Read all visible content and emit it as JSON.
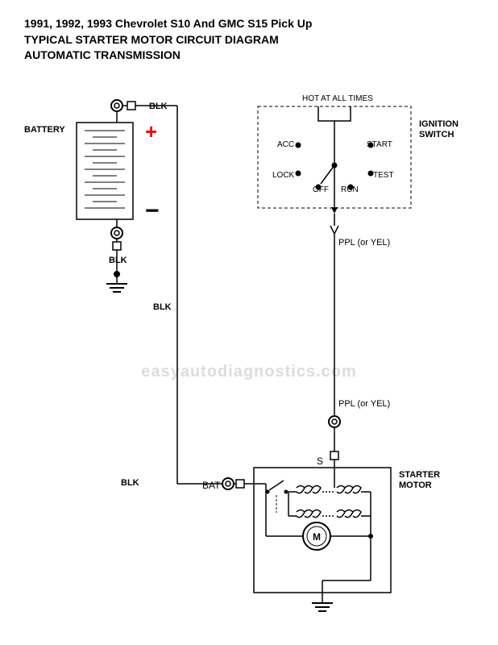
{
  "title": {
    "line1": "1991, 1992, 1993 Chevrolet S10 And GMC S15 Pick Up",
    "line2": "TYPICAL STARTER MOTOR CIRCUIT DIAGRAM",
    "line3": "AUTOMATIC TRANSMISSION"
  },
  "labels": {
    "battery": "BATTERY",
    "blk_top": "BLK",
    "blk_bottom": "BLK",
    "blk_wire1": "BLK",
    "blk_wire2": "BLK",
    "hot": "HOT AT ALL TIMES",
    "ignition": "IGNITION SWITCH",
    "acc": "ACC",
    "lock": "LOCK",
    "off": "OFF",
    "run": "RUN",
    "start": "START",
    "test": "TEST",
    "ppl1": "PPL (or YEL)",
    "ppl2": "PPL (or YEL)",
    "bat": "BAT",
    "s": "S",
    "starter": "STARTER MOTOR",
    "m": "M"
  },
  "watermark": "easyautodiagnostics.com",
  "colors": {
    "line": "#000000",
    "plus": "#ff0000",
    "dash": "#000000",
    "bg": "#ffffff"
  },
  "diagram_type": "wiring-schematic"
}
